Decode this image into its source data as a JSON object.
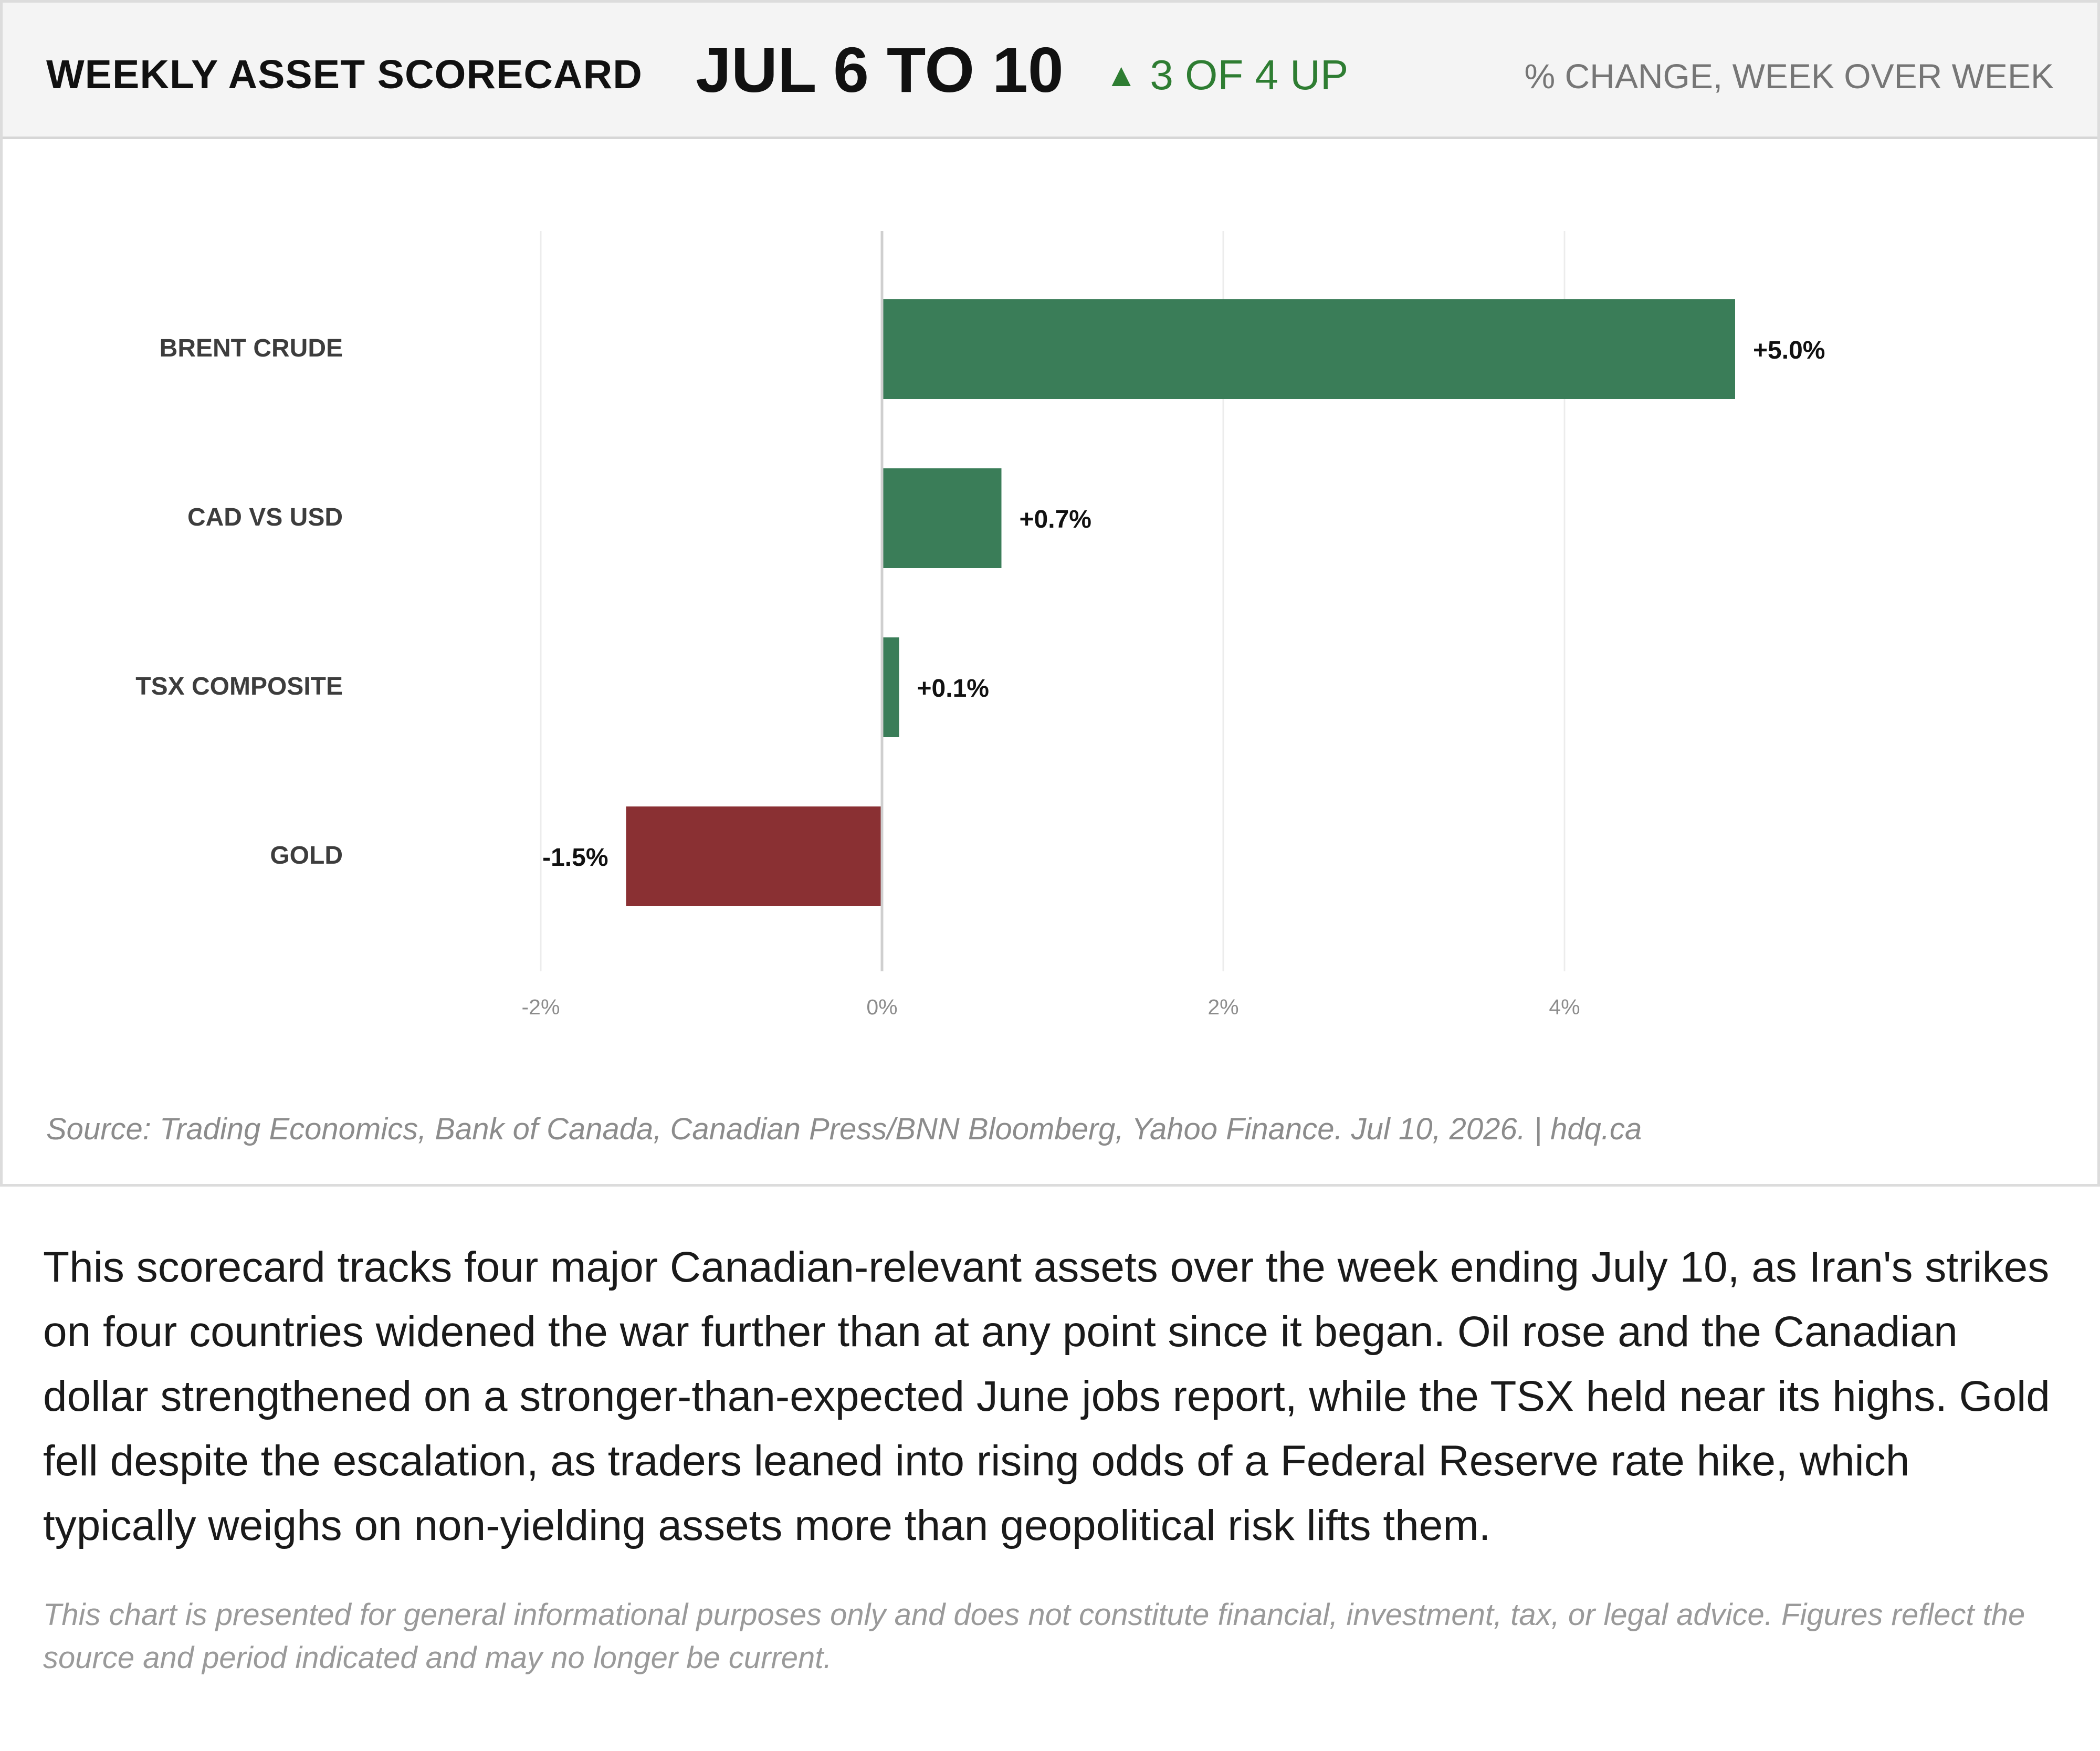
{
  "header": {
    "title": "WEEKLY ASSET SCORECARD",
    "date_range": "JUL 6 TO 10",
    "up_triangle": "▲",
    "up_summary": "3 OF 4 UP",
    "measure_note": "% CHANGE, WEEK OVER WEEK"
  },
  "chart_data": {
    "type": "bar",
    "orientation": "horizontal",
    "categories": [
      "BRENT CRUDE",
      "CAD VS USD",
      "TSX COMPOSITE",
      "GOLD"
    ],
    "values": [
      5.0,
      0.7,
      0.1,
      -1.5
    ],
    "value_labels": [
      "+5.0%",
      "+0.7%",
      "+0.1%",
      "-1.5%"
    ],
    "x_ticks": [
      -2,
      0,
      2,
      4
    ],
    "x_tick_labels": [
      "-2%",
      "0%",
      "2%",
      "4%"
    ],
    "xlim": [
      -2,
      5.5
    ],
    "grid": true,
    "colors": {
      "positive": "#3a7d58",
      "negative": "#8a3033"
    }
  },
  "source": "Source: Trading Economics, Bank of Canada, Canadian Press/BNN Bloomberg, Yahoo Finance. Jul 10, 2026.  |  hdq.ca",
  "body": "This scorecard tracks four major Canadian-relevant assets over the week ending July 10, as Iran's strikes on four countries widened the war further than at any point since it began. Oil rose and the Canadian dollar strengthened on a stronger-than-expected June jobs report, while the TSX held near its highs. Gold fell despite the escalation, as traders leaned into rising odds of a Federal Reserve rate hike, which typically weighs on non-yielding assets more than geopolitical risk lifts them.",
  "disclaimer": "This chart is presented for general informational purposes only and does not constitute financial, investment, tax, or legal advice. Figures reflect the source and period indicated and may no longer be current."
}
